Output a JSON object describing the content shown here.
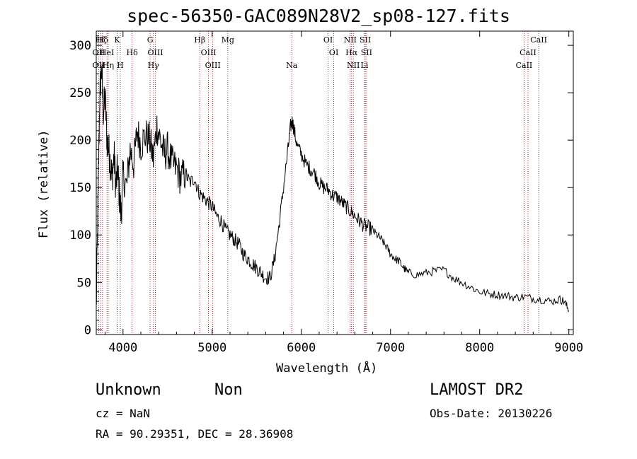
{
  "header": {
    "title": "spec-56350-GAC089N28V2_sp08-127.fits"
  },
  "axes": {
    "xlabel": "Wavelength (Å)",
    "ylabel": "Flux (relative)"
  },
  "info": {
    "class": "Unknown",
    "subclass": "Non",
    "cz": "cz = NaN",
    "coords": "RA =  90.29351, DEC =  28.36908",
    "survey": "LAMOST DR2",
    "obsdate": "Obs-Date: 20130226"
  },
  "chart_data": {
    "type": "line",
    "title": "spec-56350-GAC089N28V2_sp08-127.fits",
    "xlabel": "Wavelength (Å)",
    "ylabel": "Flux (relative)",
    "xlim": [
      3700,
      9050
    ],
    "ylim": [
      -5,
      315
    ],
    "xticks": [
      4000,
      5000,
      6000,
      7000,
      8000,
      9000
    ],
    "yticks": [
      0,
      50,
      100,
      150,
      200,
      250,
      300
    ],
    "grid": false,
    "series": [
      {
        "color": "#000000",
        "points": [
          [
            3700,
            20
          ],
          [
            3720,
            140
          ],
          [
            3740,
            250
          ],
          [
            3760,
            275
          ],
          [
            3780,
            230
          ],
          [
            3800,
            245
          ],
          [
            3820,
            200
          ],
          [
            3840,
            190
          ],
          [
            3860,
            175
          ],
          [
            3880,
            160
          ],
          [
            3900,
            185
          ],
          [
            3920,
            150
          ],
          [
            3940,
            170
          ],
          [
            3960,
            140
          ],
          [
            3980,
            120
          ],
          [
            4000,
            165
          ],
          [
            4040,
            150
          ],
          [
            4080,
            190
          ],
          [
            4120,
            175
          ],
          [
            4160,
            210
          ],
          [
            4200,
            195
          ],
          [
            4250,
            205
          ],
          [
            4300,
            200
          ],
          [
            4340,
            180
          ],
          [
            4380,
            215
          ],
          [
            4420,
            200
          ],
          [
            4460,
            185
          ],
          [
            4500,
            190
          ],
          [
            4550,
            175
          ],
          [
            4600,
            170
          ],
          [
            4650,
            160
          ],
          [
            4700,
            165
          ],
          [
            4750,
            155
          ],
          [
            4800,
            160
          ],
          [
            4850,
            145
          ],
          [
            4900,
            140
          ],
          [
            4950,
            135
          ],
          [
            5000,
            130
          ],
          [
            5050,
            120
          ],
          [
            5100,
            115
          ],
          [
            5150,
            105
          ],
          [
            5200,
            100
          ],
          [
            5250,
            95
          ],
          [
            5300,
            90
          ],
          [
            5350,
            80
          ],
          [
            5400,
            75
          ],
          [
            5450,
            70
          ],
          [
            5500,
            65
          ],
          [
            5550,
            60
          ],
          [
            5600,
            55
          ],
          [
            5650,
            55
          ],
          [
            5700,
            75
          ],
          [
            5750,
            110
          ],
          [
            5800,
            150
          ],
          [
            5850,
            190
          ],
          [
            5880,
            215
          ],
          [
            5900,
            220
          ],
          [
            5920,
            210
          ],
          [
            5950,
            195
          ],
          [
            6000,
            185
          ],
          [
            6050,
            175
          ],
          [
            6100,
            170
          ],
          [
            6150,
            165
          ],
          [
            6200,
            155
          ],
          [
            6250,
            150
          ],
          [
            6300,
            148
          ],
          [
            6350,
            142
          ],
          [
            6400,
            140
          ],
          [
            6450,
            135
          ],
          [
            6500,
            130
          ],
          [
            6550,
            125
          ],
          [
            6600,
            120
          ],
          [
            6650,
            115
          ],
          [
            6700,
            110
          ],
          [
            6750,
            108
          ],
          [
            6800,
            105
          ],
          [
            6850,
            100
          ],
          [
            6900,
            95
          ],
          [
            6950,
            88
          ],
          [
            7000,
            80
          ],
          [
            7050,
            75
          ],
          [
            7100,
            72
          ],
          [
            7150,
            65
          ],
          [
            7200,
            60
          ],
          [
            7300,
            58
          ],
          [
            7400,
            60
          ],
          [
            7500,
            62
          ],
          [
            7600,
            63
          ],
          [
            7700,
            55
          ],
          [
            7800,
            50
          ],
          [
            7900,
            45
          ],
          [
            8000,
            40
          ],
          [
            8100,
            38
          ],
          [
            8200,
            37
          ],
          [
            8300,
            36
          ],
          [
            8400,
            34
          ],
          [
            8500,
            35
          ],
          [
            8600,
            33
          ],
          [
            8700,
            32
          ],
          [
            8800,
            30
          ],
          [
            8900,
            32
          ],
          [
            8950,
            30
          ],
          [
            9000,
            20
          ]
        ]
      }
    ],
    "lines": [
      {
        "label": "Hζ",
        "x": 3750,
        "row": 0
      },
      {
        "label": "Hδ",
        "x": 3770,
        "row": 0
      },
      {
        "label": "OII",
        "x": 3727,
        "row": 1
      },
      {
        "label": "HeI",
        "x": 3820,
        "row": 1
      },
      {
        "label": "OII",
        "x": 3727,
        "row": 2
      },
      {
        "label": "Hη",
        "x": 3835,
        "row": 2
      },
      {
        "label": "K",
        "x": 3934,
        "row": 0
      },
      {
        "label": "H",
        "x": 3969,
        "row": 2
      },
      {
        "label": "Hδ",
        "x": 4102,
        "row": 1
      },
      {
        "label": "G",
        "x": 4304,
        "row": 0
      },
      {
        "label": "OIII",
        "x": 4363,
        "row": 1
      },
      {
        "label": "Hγ",
        "x": 4341,
        "row": 2
      },
      {
        "label": "Hβ",
        "x": 4861,
        "row": 0
      },
      {
        "label": "OIII",
        "x": 4959,
        "row": 1
      },
      {
        "label": "OIII",
        "x": 5007,
        "row": 2
      },
      {
        "label": "Mg",
        "x": 5175,
        "row": 0
      },
      {
        "label": "Na",
        "x": 5893,
        "row": 2
      },
      {
        "label": "OI",
        "x": 6300,
        "row": 0
      },
      {
        "label": "OI",
        "x": 6364,
        "row": 1
      },
      {
        "label": "NII",
        "x": 6548,
        "row": 0
      },
      {
        "label": "Hα",
        "x": 6563,
        "row": 1
      },
      {
        "label": "NII",
        "x": 6583,
        "row": 2
      },
      {
        "label": "SII",
        "x": 6717,
        "row": 0
      },
      {
        "label": "SII",
        "x": 6731,
        "row": 1
      },
      {
        "label": "Li",
        "x": 6708,
        "row": 2
      },
      {
        "label": "CaII",
        "x": 8662,
        "row": 0
      },
      {
        "label": "CaII",
        "x": 8542,
        "row": 1
      },
      {
        "label": "CaII",
        "x": 8498,
        "row": 2
      }
    ]
  }
}
